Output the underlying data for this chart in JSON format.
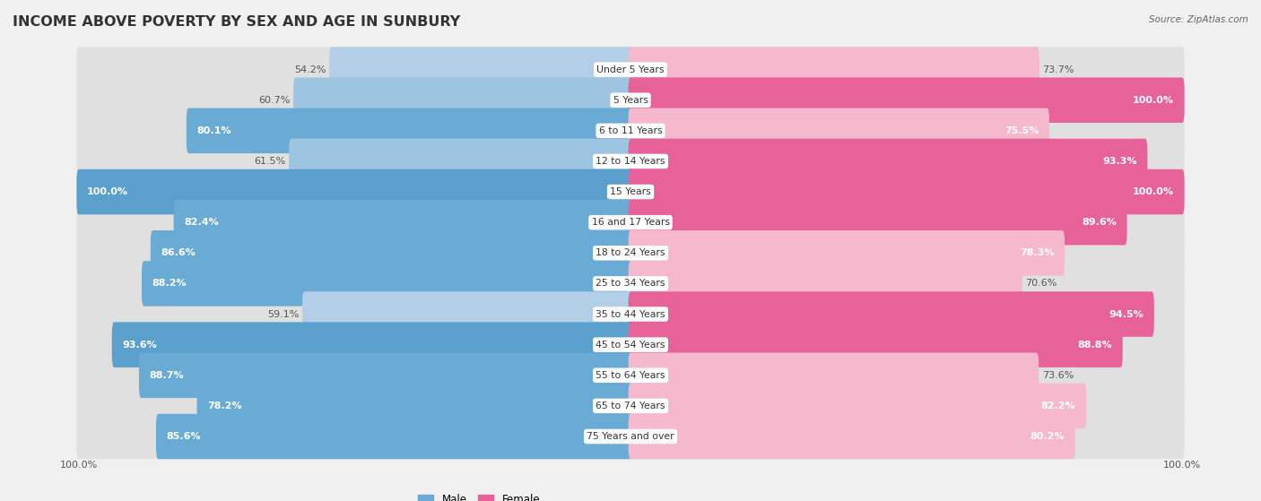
{
  "title": "INCOME ABOVE POVERTY BY SEX AND AGE IN SUNBURY",
  "source": "Source: ZipAtlas.com",
  "categories": [
    "Under 5 Years",
    "5 Years",
    "6 to 11 Years",
    "12 to 14 Years",
    "15 Years",
    "16 and 17 Years",
    "18 to 24 Years",
    "25 to 34 Years",
    "35 to 44 Years",
    "45 to 54 Years",
    "55 to 64 Years",
    "65 to 74 Years",
    "75 Years and over"
  ],
  "male_values": [
    54.2,
    60.7,
    80.1,
    61.5,
    100.0,
    82.4,
    86.6,
    88.2,
    59.1,
    93.6,
    88.7,
    78.2,
    85.6
  ],
  "female_values": [
    73.7,
    100.0,
    75.5,
    93.3,
    100.0,
    89.6,
    78.3,
    70.6,
    94.5,
    88.8,
    73.6,
    82.2,
    80.2
  ],
  "male_colors": [
    "#b3cfe8",
    "#9dc4e0",
    "#6aabd5",
    "#9dc4e0",
    "#5b9fcc",
    "#6aabd5",
    "#6aabd5",
    "#6aabd5",
    "#b3cfe8",
    "#5b9fcc",
    "#6aabd5",
    "#6aabd5",
    "#6aabd5"
  ],
  "female_colors": [
    "#f5b8cc",
    "#e8629a",
    "#f5b8cc",
    "#e8629a",
    "#e8629a",
    "#e8629a",
    "#f5b8cc",
    "#f5b8cc",
    "#e8629a",
    "#e8629a",
    "#f5b8cc",
    "#f5b8cc",
    "#f5b8cc"
  ],
  "bg_color": "#f0f0f0",
  "row_bg_color": "#e0e0e0",
  "label_bg_color": "#ffffff",
  "title_fontsize": 11.5,
  "label_fontsize": 8.0,
  "source_fontsize": 7.5,
  "legend_fontsize": 8.5,
  "cat_label_fontsize": 7.8
}
